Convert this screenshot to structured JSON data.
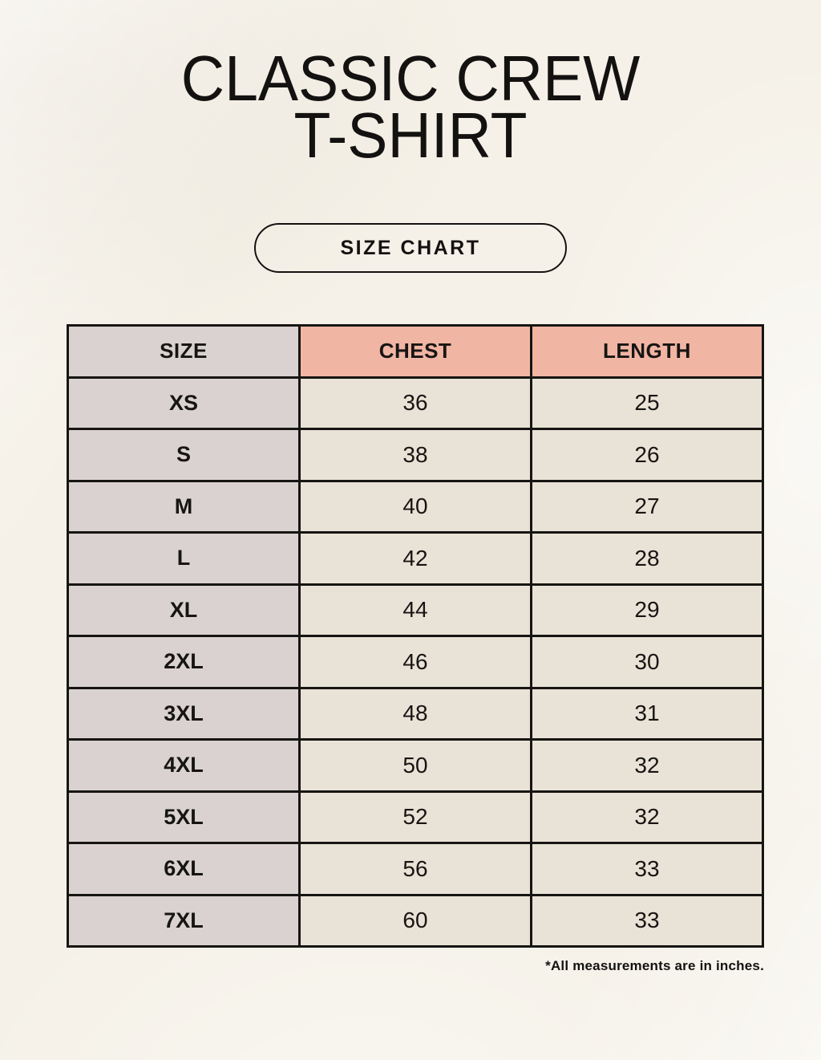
{
  "page": {
    "title_line1": "CLASSIC CREW",
    "title_line2": "T-SHIRT",
    "button_label": "SIZE CHART",
    "footnote": "*All measurements are in inches."
  },
  "table": {
    "columns": [
      "SIZE",
      "CHEST",
      "LENGTH"
    ],
    "rows": [
      {
        "size": "XS",
        "chest": "36",
        "length": "25"
      },
      {
        "size": "S",
        "chest": "38",
        "length": "26"
      },
      {
        "size": "M",
        "chest": "40",
        "length": "27"
      },
      {
        "size": "L",
        "chest": "42",
        "length": "28"
      },
      {
        "size": "XL",
        "chest": "44",
        "length": "29"
      },
      {
        "size": "2XL",
        "chest": "46",
        "length": "30"
      },
      {
        "size": "3XL",
        "chest": "48",
        "length": "31"
      },
      {
        "size": "4XL",
        "chest": "50",
        "length": "32"
      },
      {
        "size": "5XL",
        "chest": "52",
        "length": "32"
      },
      {
        "size": "6XL",
        "chest": "56",
        "length": "33"
      },
      {
        "size": "7XL",
        "chest": "60",
        "length": "33"
      }
    ]
  },
  "colors": {
    "background": "#f5f1e8",
    "size_column_bg": "#d9d2d0",
    "header_accent_bg": "#f1b5a4",
    "data_cell_bg": "#e9e2d6",
    "border": "#171513",
    "text": "#141210"
  }
}
